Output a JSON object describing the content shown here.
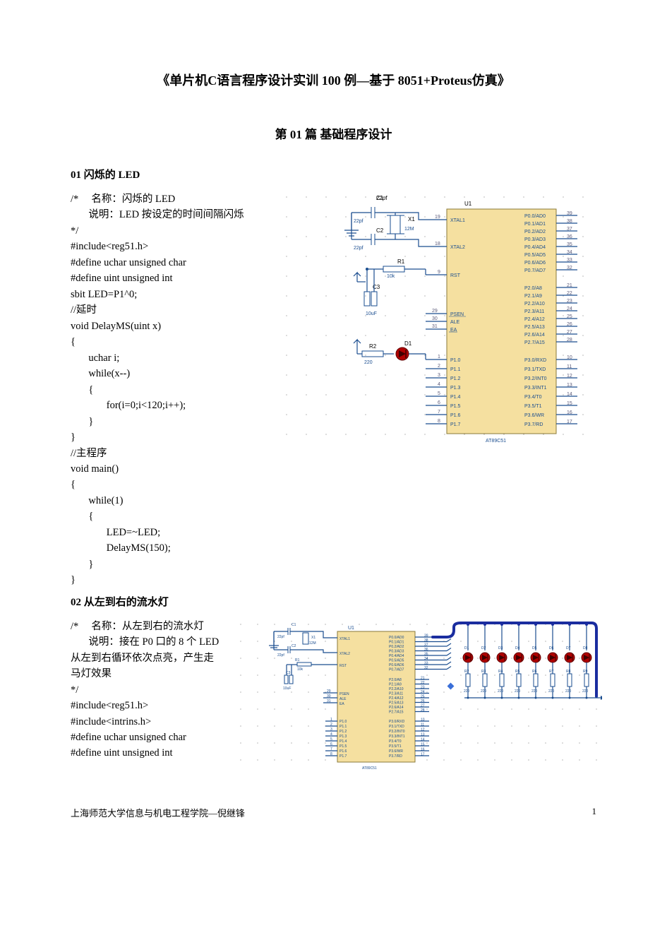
{
  "doc": {
    "title": "《单片机C语言程序设计实训 100 例—基于 8051+Proteus仿真》",
    "chapter": "第 01 篇 基础程序设计",
    "footer": "上海师范大学信息与机电工程学院—倪继锋",
    "page_number": "1"
  },
  "section01": {
    "heading": "01   闪烁的 LED",
    "code": "/*     名称：闪烁的 LED\n       说明：LED 按设定的时间间隔闪烁\n*/\n#include<reg51.h>\n#define uchar unsigned char\n#define uint unsigned int\nsbit LED=P1^0;\n//延时\nvoid DelayMS(uint x)\n{\n       uchar i;\n       while(x--)\n       {\n              for(i=0;i<120;i++);\n       }\n}\n//主程序\nvoid main()\n{\n       while(1)\n       {\n              LED=~LED;\n              DelayMS(150);\n       }\n}"
  },
  "section02": {
    "heading": "02   从左到右的流水灯",
    "code": "/*     名称：从左到右的流水灯\n       说明：接在 P0 口的 8 个 LED\n从左到右循环依次点亮，产生走\n马灯效果\n*/\n#include<reg51.h>\n#include<intrins.h>\n#define uchar unsigned char\n#define uint unsigned int"
  },
  "circuit1": {
    "chip": "AT89C51",
    "ref": "U1",
    "components": {
      "C1": "22pf",
      "C2": "22pf",
      "X1": "12M",
      "R1": "10k",
      "C3": "10uF",
      "R2": "220",
      "D1": ""
    },
    "left_pins": [
      {
        "num": "19",
        "name": "XTAL1"
      },
      {
        "num": "18",
        "name": "XTAL2"
      },
      {
        "num": "9",
        "name": "RST"
      },
      {
        "num": "29",
        "name": "PSEN"
      },
      {
        "num": "30",
        "name": "ALE"
      },
      {
        "num": "31",
        "name": "EA"
      },
      {
        "num": "1",
        "name": "P1.0"
      },
      {
        "num": "2",
        "name": "P1.1"
      },
      {
        "num": "3",
        "name": "P1.2"
      },
      {
        "num": "4",
        "name": "P1.3"
      },
      {
        "num": "5",
        "name": "P1.4"
      },
      {
        "num": "6",
        "name": "P1.5"
      },
      {
        "num": "7",
        "name": "P1.6"
      },
      {
        "num": "8",
        "name": "P1.7"
      }
    ],
    "right_pins_top": [
      {
        "num": "39",
        "name": "P0.0/AD0"
      },
      {
        "num": "38",
        "name": "P0.1/AD1"
      },
      {
        "num": "37",
        "name": "P0.2/AD2"
      },
      {
        "num": "36",
        "name": "P0.3/AD3"
      },
      {
        "num": "35",
        "name": "P0.4/AD4"
      },
      {
        "num": "34",
        "name": "P0.5/AD5"
      },
      {
        "num": "33",
        "name": "P0.6/AD6"
      },
      {
        "num": "32",
        "name": "P0.7/AD7"
      }
    ],
    "right_pins_mid": [
      {
        "num": "21",
        "name": "P2.0/A8"
      },
      {
        "num": "22",
        "name": "P2.1/A9"
      },
      {
        "num": "23",
        "name": "P2.2/A10"
      },
      {
        "num": "24",
        "name": "P2.3/A11"
      },
      {
        "num": "25",
        "name": "P2.4/A12"
      },
      {
        "num": "26",
        "name": "P2.5/A13"
      },
      {
        "num": "27",
        "name": "P2.6/A14"
      },
      {
        "num": "28",
        "name": "P2.7/A15"
      }
    ],
    "right_pins_bot": [
      {
        "num": "10",
        "name": "P3.0/RXD"
      },
      {
        "num": "11",
        "name": "P3.1/TXD"
      },
      {
        "num": "12",
        "name": "P3.2/INT0"
      },
      {
        "num": "13",
        "name": "P3.3/INT1"
      },
      {
        "num": "14",
        "name": "P3.4/T0"
      },
      {
        "num": "15",
        "name": "P3.5/T1"
      },
      {
        "num": "16",
        "name": "P3.6/WR"
      },
      {
        "num": "17",
        "name": "P3.7/RD"
      }
    ],
    "colors": {
      "wire": "#1a4d8f",
      "chip_fill": "#f5e0a0",
      "chip_stroke": "#8a7a3a",
      "led": "#b00000",
      "dot": "#888888",
      "bus": "#1a2d9f"
    }
  },
  "circuit2": {
    "chip": "AT89C51",
    "ref": "U1",
    "leds": [
      "D1",
      "D2",
      "D3",
      "D4",
      "D5",
      "D6",
      "D7",
      "D8"
    ],
    "resistors": [
      "R2",
      "R3",
      "R4",
      "R5",
      "R6",
      "R7",
      "R8",
      "R9"
    ],
    "res_val": "220",
    "components": {
      "C1": "22pf",
      "C2": "22pf",
      "X1": "12M",
      "R1": "10k",
      "C3": "10uF"
    }
  }
}
